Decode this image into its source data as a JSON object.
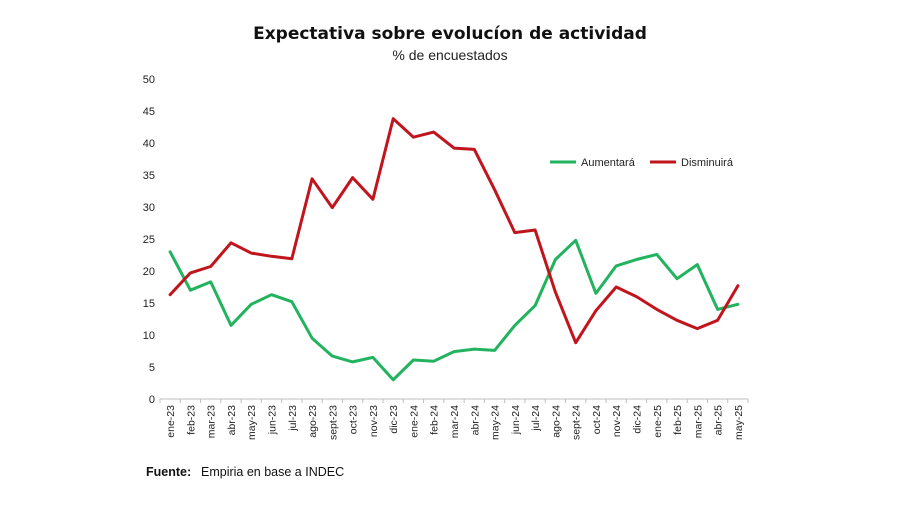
{
  "chart_data": {
    "type": "line",
    "title": "Expectativa sobre evolucíon de actividad",
    "subtitle": "% de encuestados",
    "ylim": [
      0,
      50
    ],
    "yticks": [
      0,
      5,
      10,
      15,
      20,
      25,
      30,
      35,
      40,
      45,
      50
    ],
    "grid": false,
    "legend_position": "top-right",
    "categories": [
      "ene-23",
      "feb-23",
      "mar-23",
      "abr-23",
      "may-23",
      "jun-23",
      "jul-23",
      "ago-23",
      "sept-23",
      "oct-23",
      "nov-23",
      "dic-23",
      "ene-24",
      "feb-24",
      "mar-24",
      "abr-24",
      "may-24",
      "jun-24",
      "jul-24",
      "ago-24",
      "sept-24",
      "oct-24",
      "nov-24",
      "dic-24",
      "ene-25",
      "feb-25",
      "mar-25",
      "abr-25",
      "may-25"
    ],
    "series": [
      {
        "name": "Aumentará",
        "color": "#22b35e",
        "values": [
          23,
          17,
          18.3,
          11.5,
          14.8,
          16.3,
          15.2,
          9.5,
          6.7,
          5.8,
          6.5,
          3.0,
          6.1,
          5.9,
          7.4,
          7.8,
          7.6,
          11.5,
          14.6,
          21.8,
          24.8,
          16.5,
          20.8,
          21.8,
          22.6,
          18.8,
          21.0,
          14.0,
          14.8
        ]
      },
      {
        "name": "Disminuirá",
        "color": "#c0151d",
        "values": [
          16.3,
          19.7,
          20.7,
          24.4,
          22.8,
          22.3,
          21.9,
          34.4,
          29.9,
          34.6,
          31.2,
          43.8,
          40.9,
          41.7,
          39.2,
          39.0,
          32.7,
          26.0,
          26.4,
          16.7,
          8.8,
          13.8,
          17.5,
          16.0,
          14.0,
          12.3,
          11.0,
          12.3,
          17.7
        ]
      }
    ]
  },
  "footer": {
    "source_label": "Fuente:",
    "source_text": "Empiria en base a INDEC"
  }
}
